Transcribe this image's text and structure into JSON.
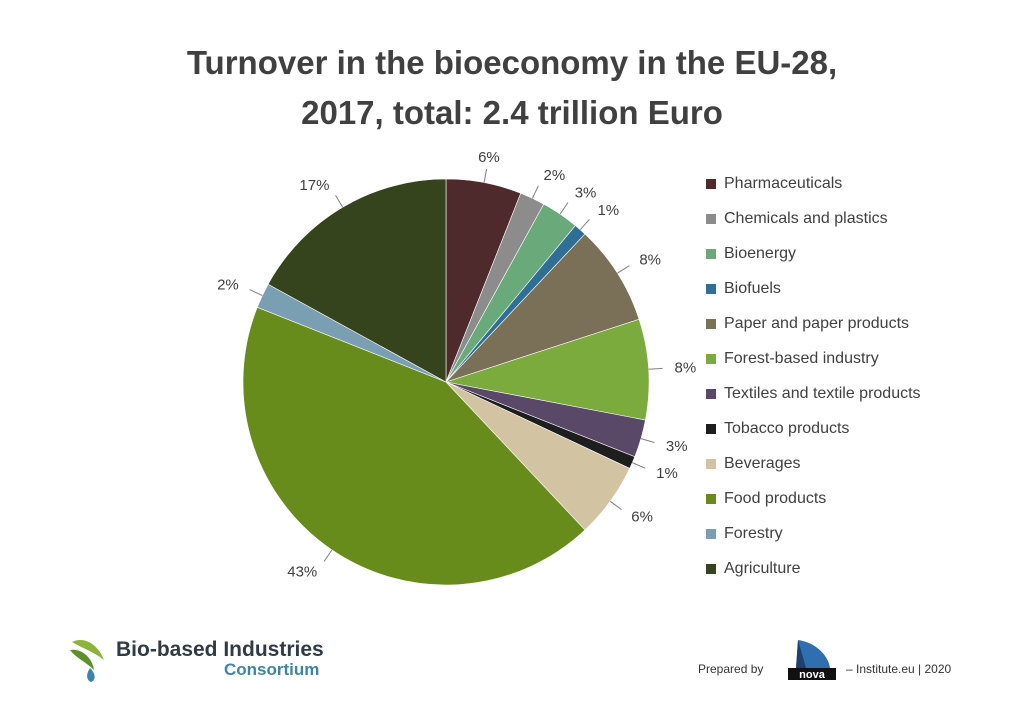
{
  "title_line1": "Turnover in the bioeconomy in the EU-28,",
  "title_line2": "2017, total: 2.4 trillion Euro",
  "chart_data": {
    "type": "pie",
    "unit": "%",
    "title": "Turnover in the bioeconomy in the EU-28, 2017, total: 2.4 trillion Euro",
    "legend_position": "right",
    "slices": [
      {
        "label": "Pharmaceuticals",
        "value": 6,
        "display": "6%",
        "color": "#4f2a2c"
      },
      {
        "label": "Chemicals and plastics",
        "value": 2,
        "display": "2%",
        "color": "#8c8c8c"
      },
      {
        "label": "Bioenergy",
        "value": 3,
        "display": "3%",
        "color": "#6aaa7a"
      },
      {
        "label": "Biofuels",
        "value": 1,
        "display": "1%",
        "color": "#2f6f96"
      },
      {
        "label": "Paper and paper products",
        "value": 8,
        "display": "8%",
        "color": "#7a7058"
      },
      {
        "label": "Forest-based industry",
        "value": 8,
        "display": "8%",
        "color": "#7bab3c"
      },
      {
        "label": "Textiles and textile products",
        "value": 3,
        "display": "3%",
        "color": "#5a4868"
      },
      {
        "label": "Tobacco products",
        "value": 1,
        "display": "1%",
        "color": "#1e1e1e"
      },
      {
        "label": "Beverages",
        "value": 6,
        "display": "6%",
        "color": "#d2c4a2"
      },
      {
        "label": "Food products",
        "value": 43,
        "display": "43%",
        "color": "#678c1c"
      },
      {
        "label": "Forestry",
        "value": 2,
        "display": "2%",
        "color": "#7a9fb2"
      },
      {
        "label": "Agriculture",
        "value": 17,
        "display": "17%",
        "color": "#35441d"
      }
    ]
  },
  "footer": {
    "logo_line1": "Bio-based Industries",
    "logo_line2": "Consortium",
    "prepared_by": "Prepared by",
    "nova_text": "nova",
    "institute": "– Institute.eu | 2020"
  },
  "icons": {
    "bbi_logo": "leaf-drop-icon",
    "nova_logo": "nova-sail-icon"
  }
}
